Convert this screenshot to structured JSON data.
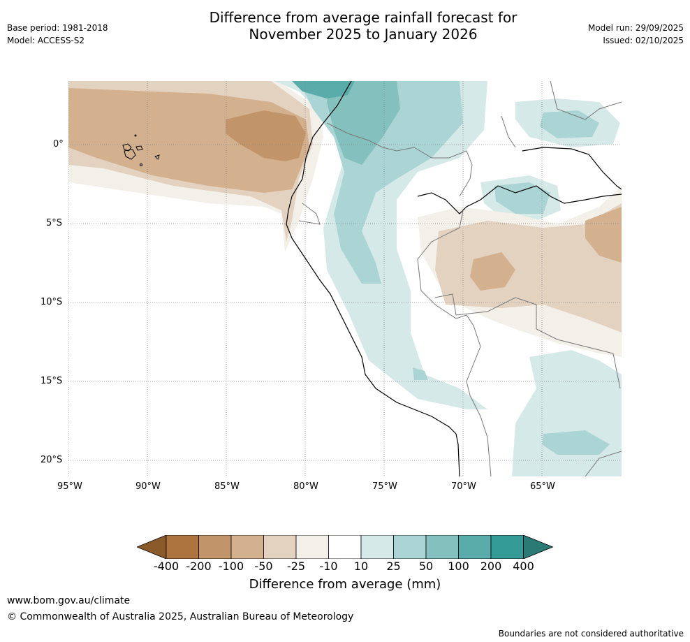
{
  "header": {
    "title_line1": "Difference from average rainfall forecast for",
    "title_line2": "November 2025 to January 2026",
    "base_period": "Base period: 1981-2018",
    "model": "Model: ACCESS-S2",
    "model_run": "Model run: 29/09/2025",
    "issued": "Issued: 02/10/2025"
  },
  "map": {
    "lat_labels": [
      "0°",
      "5°S",
      "10°S",
      "15°S",
      "20°S"
    ],
    "lon_labels": [
      "95°W",
      "90°W",
      "85°W",
      "80°W",
      "75°W",
      "70°W",
      "65°W"
    ]
  },
  "colorbar": {
    "ticks": [
      "-400",
      "-200",
      "-100",
      "-50",
      "-25",
      "-10",
      "10",
      "25",
      "50",
      "100",
      "200",
      "400"
    ],
    "colors": [
      "#8a5a2b",
      "#ad7440",
      "#c1946a",
      "#d3b08e",
      "#e4d2c0",
      "#f3efe9",
      "#ffffff",
      "#d5e9e8",
      "#aad5d4",
      "#83c0be",
      "#5aacaa",
      "#339a96",
      "#2b7a76"
    ],
    "label": "Difference from average (mm)"
  },
  "footer": {
    "website": "www.bom.gov.au/climate",
    "copyright": "© Commonwealth of Australia 2025, Australian Bureau of Meteorology",
    "disclaimer": "Boundaries are not considered authoritative"
  }
}
